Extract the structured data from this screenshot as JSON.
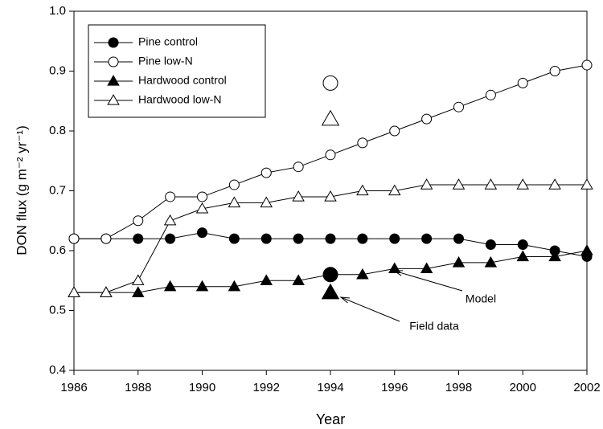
{
  "chart_data": {
    "type": "line",
    "x": [
      1986,
      1987,
      1988,
      1989,
      1990,
      1991,
      1992,
      1993,
      1994,
      1995,
      1996,
      1997,
      1998,
      1999,
      2000,
      2001,
      2002
    ],
    "xlabel": "Year",
    "ylabel": "DON flux (g m⁻² yr⁻¹)",
    "xlim": [
      1986,
      2002
    ],
    "xticks": [
      1986,
      1988,
      1990,
      1992,
      1994,
      1996,
      1998,
      2000,
      2002
    ],
    "ylim": [
      0.4,
      1.0
    ],
    "yticks": [
      0.4,
      0.5,
      0.6,
      0.7,
      0.8,
      0.9,
      {
        "value": 1.0,
        "label": "1.0"
      }
    ],
    "series": [
      {
        "name": "Pine control",
        "color": "#000000",
        "marker": "circle",
        "filled": true,
        "values": [
          0.62,
          0.62,
          0.62,
          0.62,
          0.63,
          0.62,
          0.62,
          0.62,
          0.62,
          0.62,
          0.62,
          0.62,
          0.62,
          0.61,
          0.61,
          0.6,
          0.59
        ]
      },
      {
        "name": "Pine low-N",
        "color": "#000000",
        "marker": "circle",
        "filled": false,
        "values": [
          0.62,
          0.62,
          0.65,
          0.69,
          0.69,
          0.71,
          0.73,
          0.74,
          0.76,
          0.78,
          0.8,
          0.82,
          0.84,
          0.86,
          0.88,
          0.9,
          0.91
        ]
      },
      {
        "name": "Hardwood control",
        "color": "#000000",
        "marker": "triangle",
        "filled": true,
        "values": [
          0.53,
          0.53,
          0.53,
          0.54,
          0.54,
          0.54,
          0.55,
          0.55,
          0.56,
          0.56,
          0.57,
          0.57,
          0.58,
          0.58,
          0.59,
          0.59,
          0.6
        ]
      },
      {
        "name": "Hardwood low-N",
        "color": "#000000",
        "marker": "triangle",
        "filled": false,
        "values": [
          0.53,
          0.53,
          0.55,
          0.65,
          0.67,
          0.68,
          0.68,
          0.69,
          0.69,
          0.7,
          0.7,
          0.71,
          0.71,
          0.71,
          0.71,
          0.71,
          0.71
        ]
      }
    ],
    "field_data": {
      "x": 1994,
      "values": [
        0.56,
        0.88,
        0.53,
        0.82
      ]
    },
    "annotations": [
      "Model",
      "Field data"
    ],
    "legend": "upper-left"
  }
}
